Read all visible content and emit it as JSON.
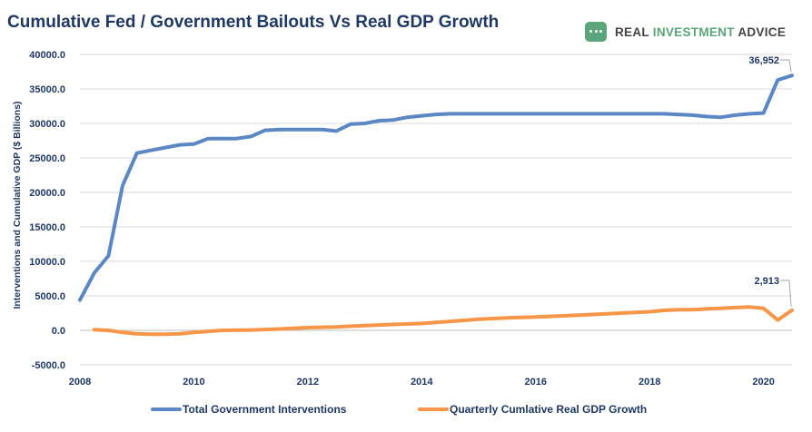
{
  "title": "Cumulative Fed / Government Bailouts Vs Real GDP Growth",
  "logo": {
    "prefix": "REAL ",
    "highlight": "INVESTMENT",
    "suffix": " ADVICE",
    "icon": "logo-mark-icon",
    "color": "#5aa57a"
  },
  "chart_data": {
    "type": "line",
    "title": "Cumulative Fed / Government Bailouts Vs Real GDP Growth",
    "xlabel": "",
    "ylabel": "Interventions and Cumulative GDP ($ Billions)",
    "xlim": [
      2008,
      2020.5
    ],
    "ylim": [
      -5000,
      40000
    ],
    "x_ticks": [
      2008,
      2010,
      2012,
      2014,
      2016,
      2018,
      2020
    ],
    "y_ticks": [
      -5000,
      0,
      5000,
      10000,
      15000,
      20000,
      25000,
      30000,
      35000,
      40000
    ],
    "y_tick_labels": [
      "-5000.0",
      "0.0",
      "5000.0",
      "10000.0",
      "15000.0",
      "20000.0",
      "25000.0",
      "30000.0",
      "35000.0",
      "40000.0"
    ],
    "grid": true,
    "legend": "bottom",
    "series": [
      {
        "name": "Total Government Interventions",
        "color": "#5b88c5",
        "x": [
          2008,
          2008.25,
          2008.5,
          2008.75,
          2009,
          2009.25,
          2009.5,
          2009.75,
          2010,
          2010.25,
          2010.5,
          2010.75,
          2011,
          2011.25,
          2011.5,
          2011.75,
          2012,
          2012.25,
          2012.5,
          2012.75,
          2013,
          2013.25,
          2013.5,
          2013.75,
          2014,
          2014.25,
          2014.5,
          2014.75,
          2015,
          2015.5,
          2016,
          2016.5,
          2017,
          2017.5,
          2018,
          2018.25,
          2018.5,
          2018.75,
          2019,
          2019.25,
          2019.5,
          2019.75,
          2020,
          2020.25,
          2020.5
        ],
        "y": [
          4400,
          8300,
          10800,
          21000,
          25700,
          26100,
          26500,
          26900,
          27000,
          27800,
          27800,
          27800,
          28100,
          29000,
          29100,
          29100,
          29100,
          29100,
          28900,
          29900,
          30000,
          30400,
          30500,
          30900,
          31100,
          31300,
          31400,
          31400,
          31400,
          31400,
          31400,
          31400,
          31400,
          31400,
          31400,
          31400,
          31300,
          31200,
          31000,
          30900,
          31200,
          31400,
          31500,
          36300,
          36952
        ]
      },
      {
        "name": "Quarterly Cumlative Real GDP Growth",
        "color": "#f79646",
        "x": [
          2008.25,
          2008.5,
          2008.75,
          2009,
          2009.25,
          2009.5,
          2009.75,
          2010,
          2010.5,
          2011,
          2011.5,
          2012,
          2012.5,
          2013,
          2013.5,
          2014,
          2014.5,
          2015,
          2015.5,
          2016,
          2016.5,
          2017,
          2017.5,
          2018,
          2018.25,
          2018.5,
          2018.75,
          2019,
          2019.25,
          2019.5,
          2019.75,
          2020,
          2020.25,
          2020.5
        ],
        "y": [
          100,
          0,
          -300,
          -500,
          -550,
          -550,
          -500,
          -300,
          0,
          50,
          200,
          400,
          500,
          700,
          850,
          1000,
          1300,
          1600,
          1800,
          1950,
          2100,
          2300,
          2500,
          2700,
          2900,
          3000,
          3000,
          3100,
          3200,
          3300,
          3400,
          3200,
          1500,
          2913
        ]
      }
    ],
    "annotations": [
      {
        "series": 0,
        "text": "36,952"
      },
      {
        "series": 1,
        "text": "2,913"
      }
    ]
  }
}
